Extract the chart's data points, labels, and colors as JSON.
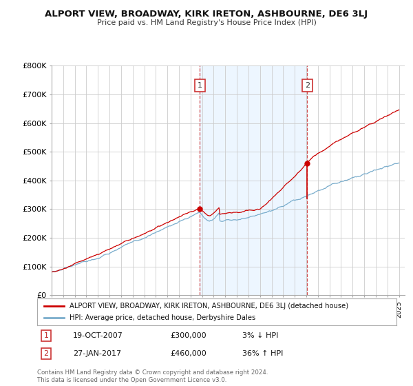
{
  "title": "ALPORT VIEW, BROADWAY, KIRK IRETON, ASHBOURNE, DE6 3LJ",
  "subtitle": "Price paid vs. HM Land Registry's House Price Index (HPI)",
  "ylabel_ticks": [
    "£0",
    "£100K",
    "£200K",
    "£300K",
    "£400K",
    "£500K",
    "£600K",
    "£700K",
    "£800K"
  ],
  "ylim": [
    0,
    800000
  ],
  "xlim_start": 1995.0,
  "xlim_end": 2025.5,
  "sale1_date_num": 2007.8,
  "sale1_price": 300000,
  "sale1_label": "1",
  "sale2_date_num": 2017.07,
  "sale2_price": 460000,
  "sale2_label": "2",
  "line_color_property": "#cc0000",
  "line_color_hpi": "#7aadcc",
  "legend_property": "ALPORT VIEW, BROADWAY, KIRK IRETON, ASHBOURNE, DE6 3LJ (detached house)",
  "legend_hpi": "HPI: Average price, detached house, Derbyshire Dales",
  "table_row1": [
    "1",
    "19-OCT-2007",
    "£300,000",
    "3% ↓ HPI"
  ],
  "table_row2": [
    "2",
    "27-JAN-2017",
    "£460,000",
    "36% ↑ HPI"
  ],
  "footnote": "Contains HM Land Registry data © Crown copyright and database right 2024.\nThis data is licensed under the Open Government Licence v3.0.",
  "grid_color": "#cccccc",
  "span_color": "#ddeeff",
  "span_alpha": 0.5
}
